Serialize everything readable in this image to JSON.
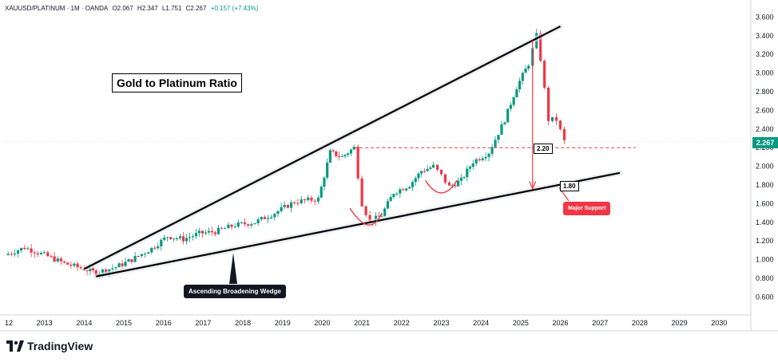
{
  "header": {
    "symbol": "XAUUSD/PLATINUM · 1M · OANDA",
    "open": "O2.067",
    "high": "H2.347",
    "low": "L1.751",
    "close": "C2.267",
    "change": "+0.157 (+7.43%)"
  },
  "annotations": {
    "title": "Gold to Platinum Ratio",
    "wedge_label": "Ascending Broadening Wedge",
    "support_label": "Major Support",
    "level_220": "2.20",
    "level_180": "1.80"
  },
  "last_price": "2.267",
  "brand": "TradingView",
  "colors": {
    "up": "#089981",
    "down": "#f23645",
    "support_box": "#f23645",
    "dashed": "#f23645"
  },
  "chart_data": {
    "type": "candlestick",
    "yaxis": {
      "ticks": [
        "3.600",
        "3.400",
        "3.200",
        "3.000",
        "2.800",
        "2.600",
        "2.400",
        "2.200",
        "2.000",
        "1.800",
        "1.600",
        "1.400",
        "1.200",
        "1.000",
        "0.800",
        "0.600"
      ],
      "range": [
        0.45,
        3.68
      ],
      "side": "right"
    },
    "xaxis": {
      "ticks": [
        "12",
        "2013",
        "2014",
        "2015",
        "2016",
        "2017",
        "2018",
        "2019",
        "2020",
        "2021",
        "2022",
        "2023",
        "2024",
        "2025",
        "2026",
        "2027",
        "2028",
        "2029",
        "2030"
      ],
      "range": [
        2012.0,
        2030.8
      ]
    },
    "series": [
      {
        "x": 2012.0,
        "close": 1.05
      },
      {
        "x": 2012.5,
        "close": 1.13
      },
      {
        "x": 2013.0,
        "close": 1.05
      },
      {
        "x": 2013.5,
        "close": 0.96
      },
      {
        "x": 2014.0,
        "close": 0.9
      },
      {
        "x": 2014.3,
        "close": 0.86
      },
      {
        "x": 2014.8,
        "close": 0.92
      },
      {
        "x": 2015.2,
        "close": 1.0
      },
      {
        "x": 2015.7,
        "close": 1.12
      },
      {
        "x": 2016.1,
        "close": 1.25
      },
      {
        "x": 2016.5,
        "close": 1.22
      },
      {
        "x": 2016.9,
        "close": 1.28
      },
      {
        "x": 2017.3,
        "close": 1.3
      },
      {
        "x": 2017.8,
        "close": 1.37
      },
      {
        "x": 2018.3,
        "close": 1.4
      },
      {
        "x": 2018.8,
        "close": 1.5
      },
      {
        "x": 2019.3,
        "close": 1.62
      },
      {
        "x": 2019.9,
        "close": 1.65
      },
      {
        "x": 2020.2,
        "close": 2.15
      },
      {
        "x": 2020.5,
        "close": 2.1
      },
      {
        "x": 2020.8,
        "close": 2.2
      },
      {
        "x": 2021.0,
        "close": 1.6
      },
      {
        "x": 2021.2,
        "close": 1.4
      },
      {
        "x": 2021.5,
        "close": 1.48
      },
      {
        "x": 2021.8,
        "close": 1.72
      },
      {
        "x": 2022.2,
        "close": 1.8
      },
      {
        "x": 2022.5,
        "close": 1.95
      },
      {
        "x": 2022.8,
        "close": 2.0
      },
      {
        "x": 2023.0,
        "close": 1.9
      },
      {
        "x": 2023.2,
        "close": 1.78
      },
      {
        "x": 2023.5,
        "close": 1.85
      },
      {
        "x": 2023.8,
        "close": 2.05
      },
      {
        "x": 2024.2,
        "close": 2.15
      },
      {
        "x": 2024.6,
        "close": 2.5
      },
      {
        "x": 2024.9,
        "close": 2.85
      },
      {
        "x": 2025.2,
        "close": 3.1
      },
      {
        "x": 2025.4,
        "close": 3.4
      },
      {
        "x": 2025.5,
        "close": 3.15
      },
      {
        "x": 2025.7,
        "close": 2.5
      },
      {
        "x": 2025.9,
        "close": 2.5
      },
      {
        "x": 2026.1,
        "close": 2.267
      }
    ],
    "lines": [
      {
        "name": "wedge-upper",
        "from": [
          2014.0,
          0.9
        ],
        "to": [
          2026.0,
          3.5
        ]
      },
      {
        "name": "wedge-lower",
        "from": [
          2014.3,
          0.82
        ],
        "to": [
          2027.5,
          1.93
        ]
      },
      {
        "name": "resistance-220",
        "value": 2.2,
        "from": 2020.8,
        "to": 2027.9,
        "style": "dashed"
      }
    ]
  }
}
